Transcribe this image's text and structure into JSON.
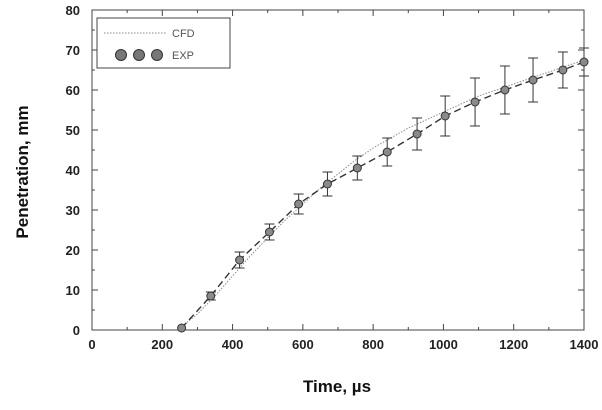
{
  "chart_data": {
    "type": "line",
    "title": "",
    "xlabel": "Time, µs",
    "ylabel": "Penetration, mm",
    "xlim": [
      0,
      1400
    ],
    "ylim": [
      0,
      80
    ],
    "x_ticks": [
      0,
      200,
      400,
      600,
      800,
      1000,
      1200,
      1400
    ],
    "y_ticks": [
      0,
      10,
      20,
      30,
      40,
      50,
      60,
      70,
      80
    ],
    "grid": false,
    "legend_position": "top-left",
    "series": [
      {
        "name": "CFD",
        "style": "thin-dotted-line",
        "color": "#8a8a8a",
        "x": [
          250,
          300,
          350,
          400,
          450,
          500,
          550,
          600,
          650,
          700,
          750,
          800,
          850,
          900,
          950,
          1000,
          1050,
          1100,
          1150,
          1200,
          1250,
          1300,
          1350,
          1400
        ],
        "y": [
          0.5,
          4,
          8.5,
          13.5,
          18.5,
          23,
          27.5,
          31.5,
          35.5,
          39,
          42.5,
          45.5,
          48,
          50.5,
          52.5,
          54.5,
          56.5,
          58.5,
          60,
          61.5,
          63,
          64.5,
          66,
          67.5
        ]
      },
      {
        "name": "EXP",
        "style": "dashed-line-with-circle-markers-and-error-bars",
        "color": "#333333",
        "x": [
          255,
          338,
          420,
          505,
          588,
          670,
          755,
          840,
          925,
          1005,
          1090,
          1175,
          1255,
          1340,
          1400
        ],
        "y": [
          0.5,
          8.5,
          17.5,
          24.5,
          31.5,
          36.5,
          40.5,
          44.5,
          49,
          53.5,
          57,
          60,
          62.5,
          65,
          67
        ],
        "yerr": [
          0,
          1,
          2,
          2,
          2.5,
          3,
          3,
          3.5,
          4,
          5,
          6,
          6,
          5.5,
          4.5,
          3.5
        ]
      }
    ]
  }
}
